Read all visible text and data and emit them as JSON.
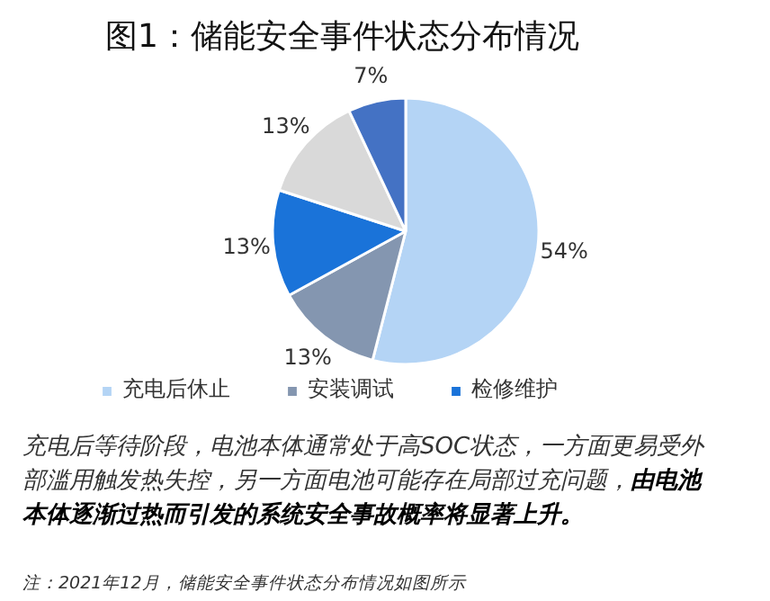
{
  "chart_data": {
    "type": "pie",
    "title": "图1：储能安全事件状态分布情况",
    "categories": [
      "充电后休止",
      "安装调试",
      "检修维护",
      null,
      null
    ],
    "values": [
      54,
      13,
      13,
      13,
      7
    ],
    "colors": [
      "#b4d4f5",
      "#8496b0",
      "#1a73d9",
      "#d9d9d9",
      "#4472c4"
    ],
    "value_labels": [
      "54%",
      "13%",
      "13%",
      "13%",
      "7%"
    ],
    "legend": "bottom",
    "annotations": [
      "充电后等待阶段，电池本体通常处于高SOC状态，一方面更易受外部滥用触发热失控，另一方面电池可能存在局部过充问题，",
      "由电池本体逐渐过热而引发的系统安全事故概率将显著上升。",
      "注：2021年12月，储能安全事件状态分布情况如图所示"
    ]
  }
}
